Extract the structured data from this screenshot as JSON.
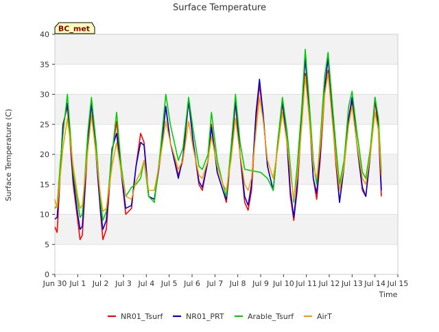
{
  "chart_data": {
    "type": "line",
    "title": "Surface Temperature",
    "xlabel": "Time",
    "ylabel": "Surface Temperature (C)",
    "ylim": [
      0,
      40
    ],
    "xlim": [
      0,
      15
    ],
    "x_ticks": [
      {
        "v": 0,
        "label": "Jun 30"
      },
      {
        "v": 1,
        "label": "Jul 1"
      },
      {
        "v": 2,
        "label": "Jul 2"
      },
      {
        "v": 3,
        "label": "Jul 3"
      },
      {
        "v": 4,
        "label": "Jul 4"
      },
      {
        "v": 5,
        "label": "Jul 5"
      },
      {
        "v": 6,
        "label": "Jul 6"
      },
      {
        "v": 7,
        "label": "Jul 7"
      },
      {
        "v": 8,
        "label": "Jul 8"
      },
      {
        "v": 9,
        "label": "Jul 9"
      },
      {
        "v": 10,
        "label": "Jul 10"
      },
      {
        "v": 11,
        "label": "Jul 11"
      },
      {
        "v": 12,
        "label": "Jul 12"
      },
      {
        "v": 13,
        "label": "Jul 13"
      },
      {
        "v": 14,
        "label": "Jul 14"
      },
      {
        "v": 15,
        "label": "Jul 15"
      }
    ],
    "y_ticks": [
      0,
      5,
      10,
      15,
      20,
      25,
      30,
      35,
      40
    ],
    "grid": true,
    "bands": "alternating light gray horizontal bands",
    "legend_position": "bottom",
    "annotation": {
      "text": "BC_met"
    },
    "series": [
      {
        "name": "NR01_Tsurf",
        "color": "#ff0000",
        "points": [
          [
            0.0,
            7.9
          ],
          [
            0.1,
            7.0
          ],
          [
            0.35,
            25.0
          ],
          [
            0.55,
            28.0
          ],
          [
            0.8,
            15.0
          ],
          [
            1.0,
            9.0
          ],
          [
            1.1,
            5.8
          ],
          [
            1.2,
            6.5
          ],
          [
            1.45,
            22.0
          ],
          [
            1.6,
            28.5
          ],
          [
            1.8,
            20.0
          ],
          [
            2.0,
            10.0
          ],
          [
            2.1,
            5.8
          ],
          [
            2.25,
            7.5
          ],
          [
            2.5,
            20.0
          ],
          [
            2.7,
            25.5
          ],
          [
            2.9,
            17.0
          ],
          [
            3.1,
            10.0
          ],
          [
            3.35,
            11.0
          ],
          [
            3.55,
            18.0
          ],
          [
            3.75,
            23.5
          ],
          [
            3.9,
            22.0
          ],
          [
            4.1,
            13.0
          ],
          [
            4.35,
            12.5
          ],
          [
            4.6,
            19.0
          ],
          [
            4.85,
            28.0
          ],
          [
            5.05,
            22.0
          ],
          [
            5.4,
            16.5
          ],
          [
            5.6,
            19.0
          ],
          [
            5.85,
            29.0
          ],
          [
            6.05,
            22.0
          ],
          [
            6.3,
            15.0
          ],
          [
            6.45,
            14.0
          ],
          [
            6.7,
            19.0
          ],
          [
            6.85,
            25.0
          ],
          [
            7.1,
            17.0
          ],
          [
            7.35,
            14.0
          ],
          [
            7.5,
            12.0
          ],
          [
            7.7,
            20.0
          ],
          [
            7.9,
            28.5
          ],
          [
            8.1,
            20.0
          ],
          [
            8.3,
            12.0
          ],
          [
            8.45,
            10.7
          ],
          [
            8.6,
            14.0
          ],
          [
            8.8,
            26.0
          ],
          [
            8.95,
            31.5
          ],
          [
            9.1,
            27.0
          ],
          [
            9.3,
            18.0
          ],
          [
            9.55,
            14.0
          ],
          [
            9.75,
            22.0
          ],
          [
            9.95,
            28.5
          ],
          [
            10.15,
            22.0
          ],
          [
            10.3,
            13.0
          ],
          [
            10.45,
            9.0
          ],
          [
            10.6,
            14.0
          ],
          [
            10.8,
            26.0
          ],
          [
            10.95,
            33.5
          ],
          [
            11.1,
            28.0
          ],
          [
            11.3,
            16.0
          ],
          [
            11.45,
            12.5
          ],
          [
            11.6,
            19.0
          ],
          [
            11.8,
            30.0
          ],
          [
            11.95,
            34.0
          ],
          [
            12.1,
            28.0
          ],
          [
            12.3,
            18.0
          ],
          [
            12.45,
            12.0
          ],
          [
            12.65,
            18.0
          ],
          [
            12.85,
            26.0
          ],
          [
            13.0,
            29.0
          ],
          [
            13.2,
            22.0
          ],
          [
            13.45,
            14.0
          ],
          [
            13.6,
            13.0
          ],
          [
            13.8,
            20.0
          ],
          [
            14.0,
            29.0
          ],
          [
            14.15,
            24.0
          ],
          [
            14.28,
            13.0
          ]
        ]
      },
      {
        "name": "NR01_PRT",
        "color": "#0000cc",
        "points": [
          [
            0.0,
            9.2
          ],
          [
            0.1,
            9.5
          ],
          [
            0.35,
            24.5
          ],
          [
            0.55,
            28.5
          ],
          [
            0.8,
            16.0
          ],
          [
            1.0,
            10.0
          ],
          [
            1.1,
            7.5
          ],
          [
            1.2,
            8.0
          ],
          [
            1.45,
            22.5
          ],
          [
            1.6,
            28.5
          ],
          [
            1.8,
            20.0
          ],
          [
            2.0,
            10.5
          ],
          [
            2.1,
            7.5
          ],
          [
            2.25,
            9.0
          ],
          [
            2.5,
            21.0
          ],
          [
            2.7,
            23.5
          ],
          [
            2.9,
            17.0
          ],
          [
            3.1,
            11.0
          ],
          [
            3.35,
            11.5
          ],
          [
            3.55,
            18.0
          ],
          [
            3.75,
            22.0
          ],
          [
            3.9,
            21.5
          ],
          [
            4.1,
            13.0
          ],
          [
            4.35,
            12.5
          ],
          [
            4.6,
            19.0
          ],
          [
            4.85,
            28.0
          ],
          [
            5.05,
            22.0
          ],
          [
            5.4,
            16.0
          ],
          [
            5.6,
            19.5
          ],
          [
            5.85,
            29.0
          ],
          [
            6.05,
            22.0
          ],
          [
            6.3,
            15.5
          ],
          [
            6.45,
            14.5
          ],
          [
            6.7,
            19.0
          ],
          [
            6.85,
            24.5
          ],
          [
            7.1,
            17.0
          ],
          [
            7.35,
            14.0
          ],
          [
            7.5,
            12.5
          ],
          [
            7.7,
            20.0
          ],
          [
            7.9,
            29.0
          ],
          [
            8.1,
            20.0
          ],
          [
            8.3,
            13.0
          ],
          [
            8.45,
            11.5
          ],
          [
            8.6,
            15.0
          ],
          [
            8.8,
            27.0
          ],
          [
            8.95,
            32.5
          ],
          [
            9.1,
            27.0
          ],
          [
            9.3,
            18.0
          ],
          [
            9.55,
            14.0
          ],
          [
            9.75,
            22.0
          ],
          [
            9.95,
            29.0
          ],
          [
            10.15,
            22.0
          ],
          [
            10.3,
            14.0
          ],
          [
            10.45,
            9.5
          ],
          [
            10.6,
            15.0
          ],
          [
            10.8,
            27.0
          ],
          [
            10.95,
            36.0
          ],
          [
            11.1,
            29.0
          ],
          [
            11.3,
            16.0
          ],
          [
            11.45,
            13.5
          ],
          [
            11.6,
            20.0
          ],
          [
            11.8,
            31.0
          ],
          [
            11.95,
            36.0
          ],
          [
            12.1,
            29.0
          ],
          [
            12.3,
            19.0
          ],
          [
            12.45,
            12.0
          ],
          [
            12.65,
            18.0
          ],
          [
            12.85,
            26.0
          ],
          [
            13.0,
            29.5
          ],
          [
            13.2,
            22.0
          ],
          [
            13.45,
            14.5
          ],
          [
            13.6,
            13.0
          ],
          [
            13.8,
            20.0
          ],
          [
            14.0,
            29.5
          ],
          [
            14.15,
            25.0
          ],
          [
            14.28,
            14.0
          ]
        ]
      },
      {
        "name": "Arable_Tsurf",
        "color": "#00cc00",
        "points": [
          [
            0.0,
            11.0
          ],
          [
            0.1,
            11.5
          ],
          [
            0.25,
            19.0
          ],
          [
            0.4,
            25.0
          ],
          [
            0.55,
            30.0
          ],
          [
            0.8,
            17.0
          ],
          [
            1.0,
            12.0
          ],
          [
            1.1,
            9.5
          ],
          [
            1.2,
            10.0
          ],
          [
            1.45,
            24.0
          ],
          [
            1.6,
            29.5
          ],
          [
            1.8,
            22.0
          ],
          [
            2.0,
            12.0
          ],
          [
            2.1,
            9.0
          ],
          [
            2.25,
            10.5
          ],
          [
            2.5,
            20.0
          ],
          [
            2.7,
            27.0
          ],
          [
            2.9,
            18.0
          ],
          [
            3.1,
            13.0
          ],
          [
            3.35,
            14.5
          ],
          [
            3.55,
            15.0
          ],
          [
            3.75,
            16.0
          ],
          [
            3.9,
            19.0
          ],
          [
            4.1,
            13.0
          ],
          [
            4.35,
            12.0
          ],
          [
            4.6,
            20.0
          ],
          [
            4.85,
            30.0
          ],
          [
            5.05,
            25.0
          ],
          [
            5.4,
            19.0
          ],
          [
            5.6,
            21.0
          ],
          [
            5.85,
            29.5
          ],
          [
            6.05,
            24.0
          ],
          [
            6.3,
            18.0
          ],
          [
            6.45,
            17.5
          ],
          [
            6.7,
            20.0
          ],
          [
            6.85,
            27.0
          ],
          [
            7.1,
            19.0
          ],
          [
            7.35,
            15.0
          ],
          [
            7.5,
            13.0
          ],
          [
            7.7,
            21.0
          ],
          [
            7.9,
            30.0
          ],
          [
            8.1,
            22.0
          ],
          [
            8.3,
            17.5
          ],
          [
            9.0,
            17.0
          ],
          [
            9.3,
            16.0
          ],
          [
            9.55,
            14.0
          ],
          [
            9.75,
            22.0
          ],
          [
            9.95,
            29.5
          ],
          [
            10.15,
            24.0
          ],
          [
            10.3,
            18.0
          ],
          [
            10.45,
            12.0
          ],
          [
            10.6,
            18.0
          ],
          [
            10.8,
            28.0
          ],
          [
            10.95,
            37.5
          ],
          [
            11.1,
            30.0
          ],
          [
            11.3,
            19.0
          ],
          [
            11.45,
            15.0
          ],
          [
            11.6,
            22.0
          ],
          [
            11.8,
            33.0
          ],
          [
            11.95,
            37.0
          ],
          [
            12.1,
            30.0
          ],
          [
            12.3,
            21.0
          ],
          [
            12.45,
            15.0
          ],
          [
            12.65,
            19.0
          ],
          [
            12.85,
            28.0
          ],
          [
            13.0,
            30.5
          ],
          [
            13.2,
            24.0
          ],
          [
            13.45,
            17.0
          ],
          [
            13.6,
            16.0
          ],
          [
            13.8,
            21.0
          ],
          [
            14.0,
            29.5
          ],
          [
            14.15,
            26.0
          ],
          [
            14.28,
            17.0
          ]
        ]
      },
      {
        "name": "AirT",
        "color": "#f0a000",
        "points": [
          [
            0.0,
            12.5
          ],
          [
            0.1,
            11.0
          ],
          [
            0.35,
            21.0
          ],
          [
            0.55,
            26.0
          ],
          [
            0.8,
            18.0
          ],
          [
            1.0,
            13.0
          ],
          [
            1.1,
            11.0
          ],
          [
            1.2,
            11.5
          ],
          [
            1.45,
            21.0
          ],
          [
            1.6,
            26.5
          ],
          [
            1.8,
            20.0
          ],
          [
            2.0,
            13.0
          ],
          [
            2.1,
            10.5
          ],
          [
            2.25,
            11.0
          ],
          [
            2.5,
            18.0
          ],
          [
            2.7,
            22.0
          ],
          [
            2.9,
            17.0
          ],
          [
            3.1,
            13.0
          ],
          [
            3.35,
            12.5
          ],
          [
            3.55,
            15.5
          ],
          [
            3.75,
            17.0
          ],
          [
            3.9,
            19.0
          ],
          [
            4.1,
            14.0
          ],
          [
            4.35,
            14.0
          ],
          [
            4.6,
            19.0
          ],
          [
            4.85,
            25.5
          ],
          [
            5.05,
            22.0
          ],
          [
            5.4,
            17.5
          ],
          [
            5.6,
            19.0
          ],
          [
            5.85,
            25.5
          ],
          [
            6.05,
            21.0
          ],
          [
            6.3,
            16.5
          ],
          [
            6.45,
            16.0
          ],
          [
            6.7,
            19.0
          ],
          [
            6.85,
            23.0
          ],
          [
            7.1,
            18.0
          ],
          [
            7.35,
            15.0
          ],
          [
            7.5,
            14.0
          ],
          [
            7.7,
            19.0
          ],
          [
            7.9,
            26.0
          ],
          [
            8.1,
            20.0
          ],
          [
            8.3,
            15.0
          ],
          [
            8.45,
            14.0
          ],
          [
            8.6,
            16.0
          ],
          [
            8.8,
            24.0
          ],
          [
            8.95,
            29.5
          ],
          [
            9.1,
            26.0
          ],
          [
            9.3,
            19.0
          ],
          [
            9.55,
            16.0
          ],
          [
            9.75,
            21.0
          ],
          [
            9.95,
            27.0
          ],
          [
            10.15,
            22.0
          ],
          [
            10.3,
            17.0
          ],
          [
            10.45,
            12.5
          ],
          [
            10.6,
            16.0
          ],
          [
            10.8,
            25.0
          ],
          [
            10.95,
            33.0
          ],
          [
            11.1,
            27.0
          ],
          [
            11.3,
            18.0
          ],
          [
            11.45,
            16.0
          ],
          [
            11.6,
            21.0
          ],
          [
            11.8,
            30.0
          ],
          [
            11.95,
            33.5
          ],
          [
            12.1,
            27.0
          ],
          [
            12.3,
            19.0
          ],
          [
            12.45,
            14.0
          ],
          [
            12.65,
            18.0
          ],
          [
            12.85,
            25.0
          ],
          [
            13.0,
            28.0
          ],
          [
            13.2,
            22.0
          ],
          [
            13.45,
            16.0
          ],
          [
            13.6,
            15.0
          ],
          [
            13.8,
            20.0
          ],
          [
            14.0,
            27.0
          ],
          [
            14.15,
            24.0
          ],
          [
            14.28,
            16.5
          ]
        ]
      }
    ]
  }
}
